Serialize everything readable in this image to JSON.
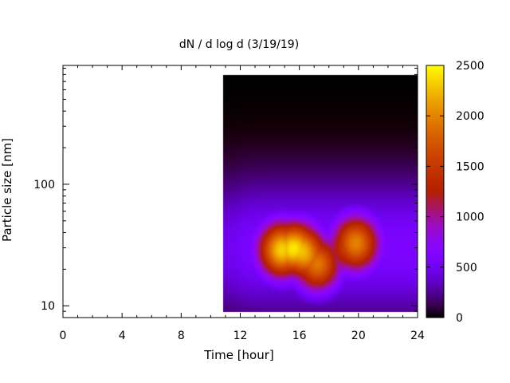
{
  "chart_data": {
    "type": "heatmap",
    "title": "dN / d log d (3/19/19)",
    "xlabel": "Time [hour]",
    "ylabel": "Particle size [nm]",
    "xlim": [
      0,
      24
    ],
    "ylim": [
      8,
      950
    ],
    "y_scale": "log",
    "x_ticks": [
      0,
      4,
      8,
      12,
      16,
      20,
      24
    ],
    "y_ticks": [
      10,
      100
    ],
    "colorbar": {
      "range": [
        0,
        2500
      ],
      "ticks": [
        0,
        500,
        1000,
        1500,
        2000,
        2500
      ],
      "palette": "gnuplot (black-blue-purple-red-orange-yellow)"
    },
    "data_extent": {
      "x": [
        10.8,
        24
      ],
      "y": [
        9,
        800
      ]
    },
    "blobs": [
      {
        "time": 14.8,
        "size": 29,
        "value": 2050
      },
      {
        "time": 17.2,
        "size": 22,
        "value": 1650
      },
      {
        "time": 19.8,
        "size": 33,
        "value": 1700
      },
      {
        "time": 16.0,
        "size": 30,
        "value": 1600
      }
    ],
    "background_level": 600,
    "grid": false
  }
}
